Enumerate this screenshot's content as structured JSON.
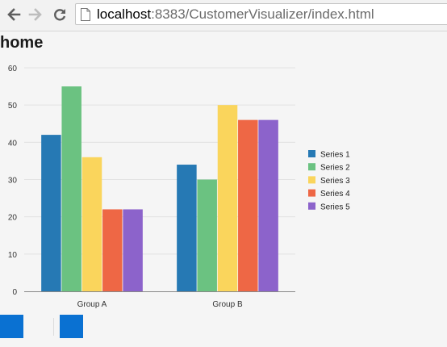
{
  "browser": {
    "url_host": "localhost",
    "url_rest": ":8383/CustomerVisualizer/index.html"
  },
  "page": {
    "title": "home"
  },
  "chart_data": {
    "type": "bar",
    "categories": [
      "Group A",
      "Group B"
    ],
    "series": [
      {
        "name": "Series 1",
        "color": "#2679b4",
        "values": [
          42,
          34
        ]
      },
      {
        "name": "Series 2",
        "color": "#6bc281",
        "values": [
          55,
          30
        ]
      },
      {
        "name": "Series 3",
        "color": "#fad55c",
        "values": [
          36,
          50
        ]
      },
      {
        "name": "Series 4",
        "color": "#ee6745",
        "values": [
          22,
          46
        ]
      },
      {
        "name": "Series 5",
        "color": "#8c63cb",
        "values": [
          22,
          46
        ]
      }
    ],
    "ylim": [
      0,
      60
    ],
    "yticks": [
      0,
      10,
      20,
      30,
      40,
      50,
      60
    ],
    "grid": true,
    "legend": "right"
  },
  "icons": {
    "back": "arrow-left-icon",
    "forward": "arrow-right-icon",
    "reload": "reload-icon",
    "page": "page-icon"
  }
}
